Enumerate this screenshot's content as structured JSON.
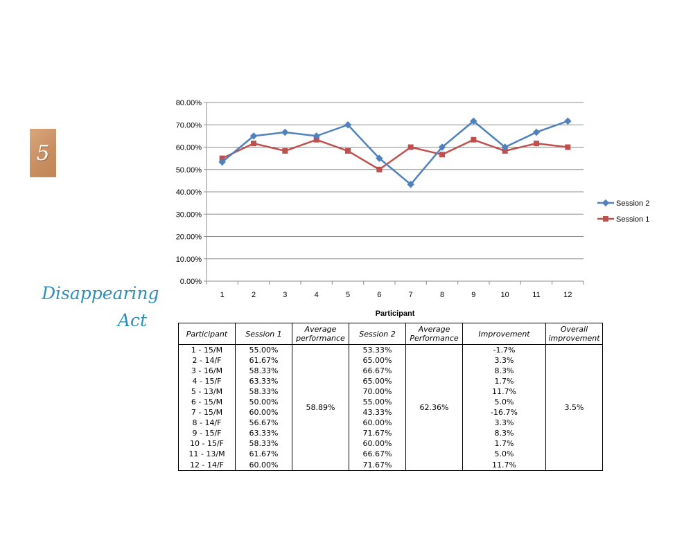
{
  "slide": {
    "number": "5",
    "title_line1": "Disappearing",
    "title_line2": "Act"
  },
  "chart_data": {
    "type": "line",
    "categories": [
      "1",
      "2",
      "3",
      "4",
      "5",
      "6",
      "7",
      "8",
      "9",
      "10",
      "11",
      "12"
    ],
    "xlabel": "Participant",
    "ylabel": "",
    "ylim": [
      0,
      80
    ],
    "y_ticks": [
      "0.00%",
      "10.00%",
      "20.00%",
      "30.00%",
      "40.00%",
      "50.00%",
      "60.00%",
      "70.00%",
      "80.00%"
    ],
    "grid": true,
    "legend_position": "right",
    "series": [
      {
        "name": "Session 2",
        "color": "#4f81bd",
        "marker": "diamond",
        "values": [
          53.33,
          65.0,
          66.67,
          65.0,
          70.0,
          55.0,
          43.33,
          60.0,
          71.67,
          60.0,
          66.67,
          71.67
        ]
      },
      {
        "name": "Session 1",
        "color": "#c0504d",
        "marker": "square",
        "values": [
          55.0,
          61.67,
          58.33,
          63.33,
          58.33,
          50.0,
          60.0,
          56.67,
          63.33,
          58.33,
          61.67,
          60.0
        ]
      }
    ]
  },
  "table": {
    "headers": {
      "participant": "Participant",
      "session1": "Session 1",
      "avg1_line1": "Average",
      "avg1_line2": "performance",
      "session2": "Session 2",
      "avg2_line1": "Average",
      "avg2_line2": "Performance",
      "improvement": "Improvement",
      "overall_line1": "Overall",
      "overall_line2": "improvement"
    },
    "average_session1": "58.89%",
    "average_session2": "62.36%",
    "overall_improvement": "3.5%",
    "rows": [
      {
        "participant": "1 - 15/M",
        "session1": "55.00%",
        "session2": "53.33%",
        "improvement": "-1.7%"
      },
      {
        "participant": "2 - 14/F",
        "session1": "61.67%",
        "session2": "65.00%",
        "improvement": "3.3%"
      },
      {
        "participant": "3 - 16/M",
        "session1": "58.33%",
        "session2": "66.67%",
        "improvement": "8.3%"
      },
      {
        "participant": "4 - 15/F",
        "session1": "63.33%",
        "session2": "65.00%",
        "improvement": "1.7%"
      },
      {
        "participant": "5 - 13/M",
        "session1": "58.33%",
        "session2": "70.00%",
        "improvement": "11.7%"
      },
      {
        "participant": "6 - 15/M",
        "session1": "50.00%",
        "session2": "55.00%",
        "improvement": "5.0%"
      },
      {
        "participant": "7 - 15/M",
        "session1": "60.00%",
        "session2": "43.33%",
        "improvement": "-16.7%"
      },
      {
        "participant": "8 - 14/F",
        "session1": "56.67%",
        "session2": "60.00%",
        "improvement": "3.3%"
      },
      {
        "participant": "9 - 15/F",
        "session1": "63.33%",
        "session2": "71.67%",
        "improvement": "8.3%"
      },
      {
        "participant": "10 - 15/F",
        "session1": "58.33%",
        "session2": "60.00%",
        "improvement": "1.7%"
      },
      {
        "participant": "11 - 13/M",
        "session1": "61.67%",
        "session2": "66.67%",
        "improvement": "5.0%"
      },
      {
        "participant": "12 - 14/F",
        "session1": "60.00%",
        "session2": "71.67%",
        "improvement": "11.7%"
      }
    ]
  }
}
